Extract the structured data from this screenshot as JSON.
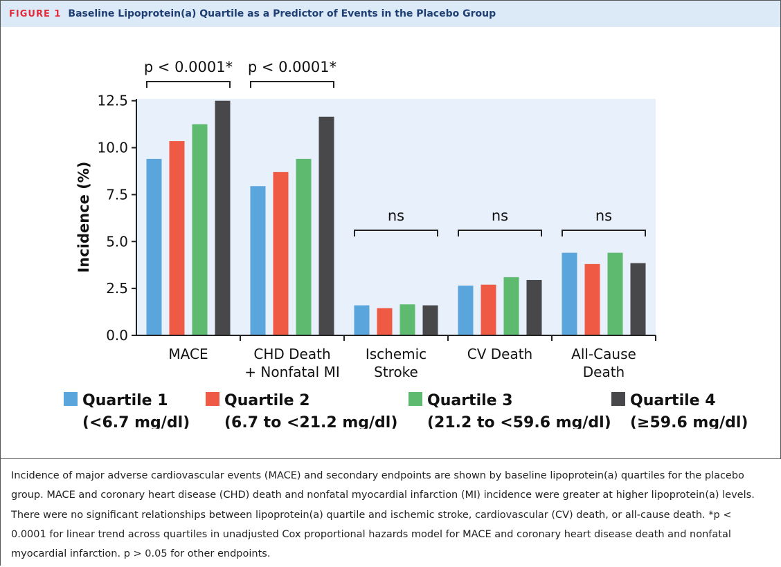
{
  "header": {
    "label": "FIGURE 1",
    "title": "Baseline Lipoprotein(a) Quartile as a Predictor of Events in the Placebo Group"
  },
  "chart_data": {
    "type": "bar",
    "y_label": "Incidence (%)",
    "categories": [
      [
        "MACE"
      ],
      [
        "CHD Death",
        "+ Nonfatal MI"
      ],
      [
        "Ischemic",
        "Stroke"
      ],
      [
        "CV Death"
      ],
      [
        "All-Cause",
        "Death"
      ]
    ],
    "series": [
      {
        "name": "Quartile 1",
        "range": "(<6.7 mg/dl)",
        "color": "#5aa5dc",
        "values": [
          9.4,
          7.95,
          1.6,
          2.65,
          4.4
        ]
      },
      {
        "name": "Quartile 2",
        "range": "(6.7 to <21.2 mg/dl)",
        "color": "#ef5a45",
        "values": [
          10.35,
          8.7,
          1.45,
          2.7,
          3.8
        ]
      },
      {
        "name": "Quartile 3",
        "range": "(21.2 to <59.6 mg/dl)",
        "color": "#5dba6e",
        "values": [
          11.25,
          9.4,
          1.65,
          3.1,
          4.4
        ]
      },
      {
        "name": "Quartile 4",
        "range": "(≥59.6 mg/dl)",
        "color": "#48484b",
        "values": [
          12.5,
          11.65,
          1.6,
          2.95,
          3.85
        ]
      }
    ],
    "ylim": [
      0,
      12.6
    ],
    "yticks": [
      {
        "value": 0,
        "label": "0.0"
      },
      2.5,
      {
        "value": 5,
        "label": "5.0"
      },
      7.5,
      {
        "value": 10,
        "label": "10.0"
      },
      12.5
    ],
    "annotations": [
      {
        "text": "p < 0.0001*",
        "category": 0
      },
      {
        "text": "p < 0.0001*",
        "category": 1
      },
      {
        "text": "ns",
        "category": 2
      },
      {
        "text": "ns",
        "category": 3
      },
      {
        "text": "ns",
        "category": 4
      }
    ],
    "background": "#e8f0fb"
  },
  "caption": "Incidence of major adverse cardiovascular events (MACE) and secondary endpoints are shown by baseline lipoprotein(a) quartiles for the placebo group. MACE and coronary heart disease (CHD) death and nonfatal myocardial infarction (MI) incidence were greater at higher lipoprotein(a) levels. There were no significant relationships between lipoprotein(a) quartile and ischemic stroke, cardiovascular (CV) death, or all-cause death. *p < 0.0001 for linear trend across quartiles in unadjusted Cox proportional hazards model for MACE and coronary heart disease death and nonfatal myocardial infarction. p > 0.05 for other endpoints."
}
